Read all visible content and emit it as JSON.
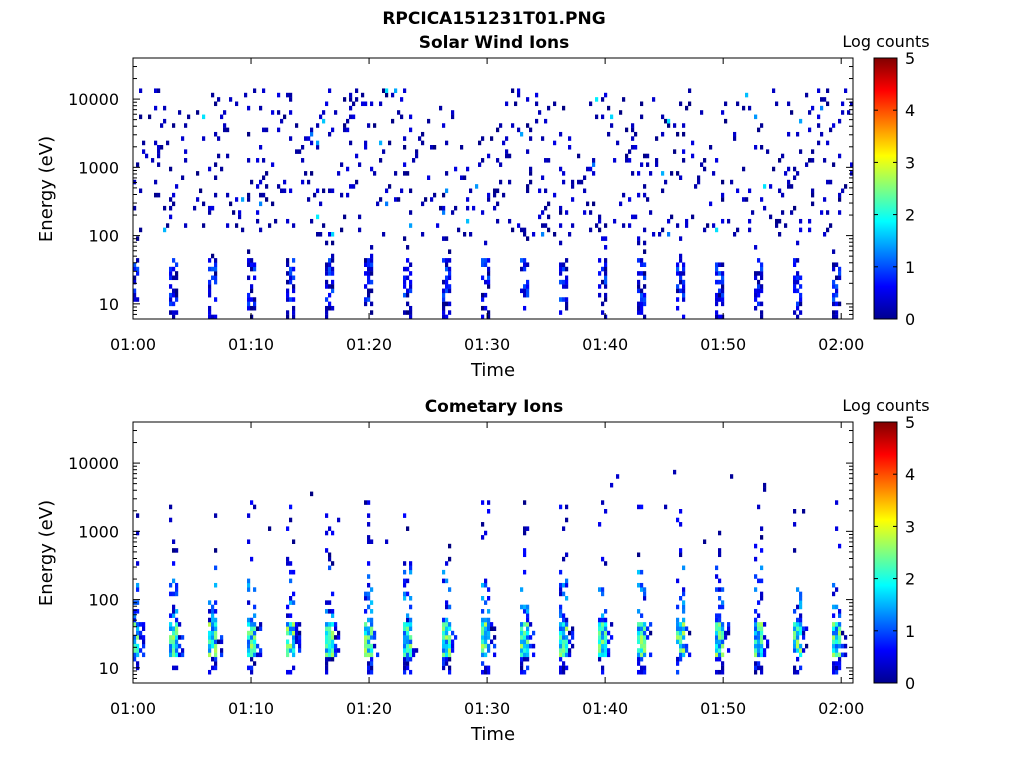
{
  "figure": {
    "title": "RPCICA151231T01.PNG"
  },
  "chart_data": [
    {
      "type": "heatmap",
      "title": "Solar Wind Ions",
      "xlabel": "Time",
      "ylabel": "Energy (eV)",
      "xlim": [
        "01:00",
        "02:01"
      ],
      "ylim": [
        6,
        40000
      ],
      "yscale": "log",
      "x_ticks": [
        "01:00",
        "01:10",
        "01:20",
        "01:30",
        "01:40",
        "01:50",
        "02:00"
      ],
      "y_ticks": [
        "10",
        "100",
        "1000",
        "10000"
      ],
      "colorbar": {
        "label": "Log counts",
        "range": [
          0,
          5
        ],
        "ticks": [
          "0",
          "1",
          "2",
          "3",
          "4",
          "5"
        ],
        "colormap": "jet"
      },
      "grid": false,
      "description_of_values": "Sparse single counts (log ~0-0.5) scattered from ~100 eV to ~15000 eV across the whole hour; periodic bursts every ~3.3 min at 10-50 eV with log counts ~0-1, occasional values ~1.5-2 around 300-800 eV.",
      "burst_period_min": 3.3,
      "low_energy_band_eV": [
        10,
        50
      ],
      "scatter_band_eV": [
        100,
        15000
      ],
      "typical_log_counts": [
        0,
        1.8
      ]
    },
    {
      "type": "heatmap",
      "title": "Cometary Ions",
      "xlabel": "Time",
      "ylabel": "Energy (eV)",
      "xlim": [
        "01:00",
        "02:01"
      ],
      "ylim": [
        6,
        40000
      ],
      "yscale": "log",
      "x_ticks": [
        "01:00",
        "01:10",
        "01:20",
        "01:30",
        "01:40",
        "01:50",
        "02:00"
      ],
      "y_ticks": [
        "10",
        "100",
        "1000",
        "10000"
      ],
      "colorbar": {
        "label": "Log counts",
        "range": [
          0,
          5
        ],
        "ticks": [
          "0",
          "1",
          "2",
          "3",
          "4",
          "5"
        ],
        "colormap": "jet"
      },
      "grid": false,
      "description_of_values": "Periodic vertical bursts every ~3.3 min; most intense (log ~1.5-2.8) at 15-45 eV, tails extending to ~1000-3000 eV with low counts; sparse points up to ~10000 eV.",
      "burst_period_min": 3.3,
      "core_band_eV": [
        15,
        45
      ],
      "tail_max_eV": 3000,
      "typical_log_counts": [
        0,
        2.8
      ]
    }
  ]
}
